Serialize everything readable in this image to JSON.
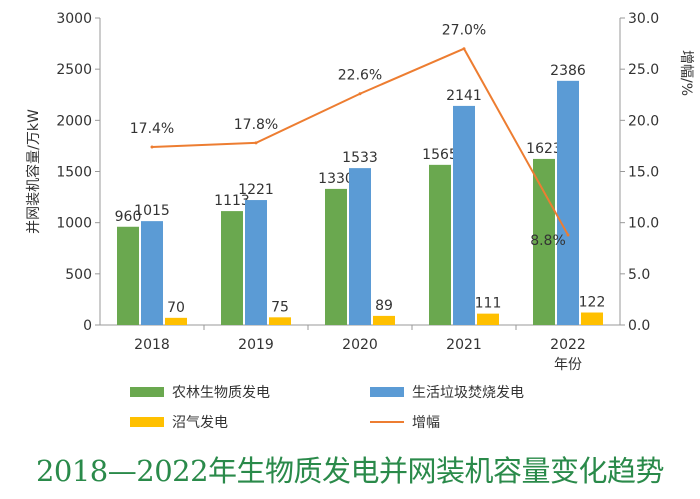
{
  "caption": "2018—2022年生物质发电并网装机容量变化趋势",
  "chart_data": {
    "type": "bar",
    "categories": [
      "2018",
      "2019",
      "2020",
      "2021",
      "2022"
    ],
    "x_unit_label": "年份",
    "ylabel_left": "并网装机容量/万kW",
    "ylabel_right": "增幅/%",
    "ylim_left": [
      0,
      3000
    ],
    "yticks_left": [
      "0",
      "500",
      "1000",
      "1500",
      "2000",
      "2500",
      "3000"
    ],
    "ylim_right": [
      0,
      30
    ],
    "yticks_right": [
      "0.0",
      "5.0",
      "10.0",
      "15.0",
      "20.0",
      "25.0",
      "30.0"
    ],
    "grid": false,
    "legend_position": "bottom",
    "series": [
      {
        "name": "农林生物质发电",
        "type": "bar",
        "axis": "left",
        "color": "#6aa84f",
        "values": [
          960,
          1113,
          1330,
          1565,
          1623
        ],
        "labels": [
          "960",
          "1113",
          "1330",
          "1565",
          "1623"
        ]
      },
      {
        "name": "生活垃圾焚烧发电",
        "type": "bar",
        "axis": "left",
        "color": "#5b9bd5",
        "values": [
          1015,
          1221,
          1533,
          2141,
          2386
        ],
        "labels": [
          "1015",
          "1221",
          "1533",
          "2141",
          "2386"
        ]
      },
      {
        "name": "沼气发电",
        "type": "bar",
        "axis": "left",
        "color": "#ffc000",
        "values": [
          70,
          75,
          89,
          111,
          122
        ],
        "labels": [
          "70",
          "75",
          "89",
          "111",
          "122"
        ]
      },
      {
        "name": "增幅",
        "type": "line",
        "axis": "right",
        "color": "#ed7d31",
        "values": [
          17.4,
          17.8,
          22.6,
          27.0,
          8.8
        ],
        "labels": [
          "17.4%",
          "17.8%",
          "22.6%",
          "27.0%",
          "8.8%"
        ]
      }
    ]
  }
}
